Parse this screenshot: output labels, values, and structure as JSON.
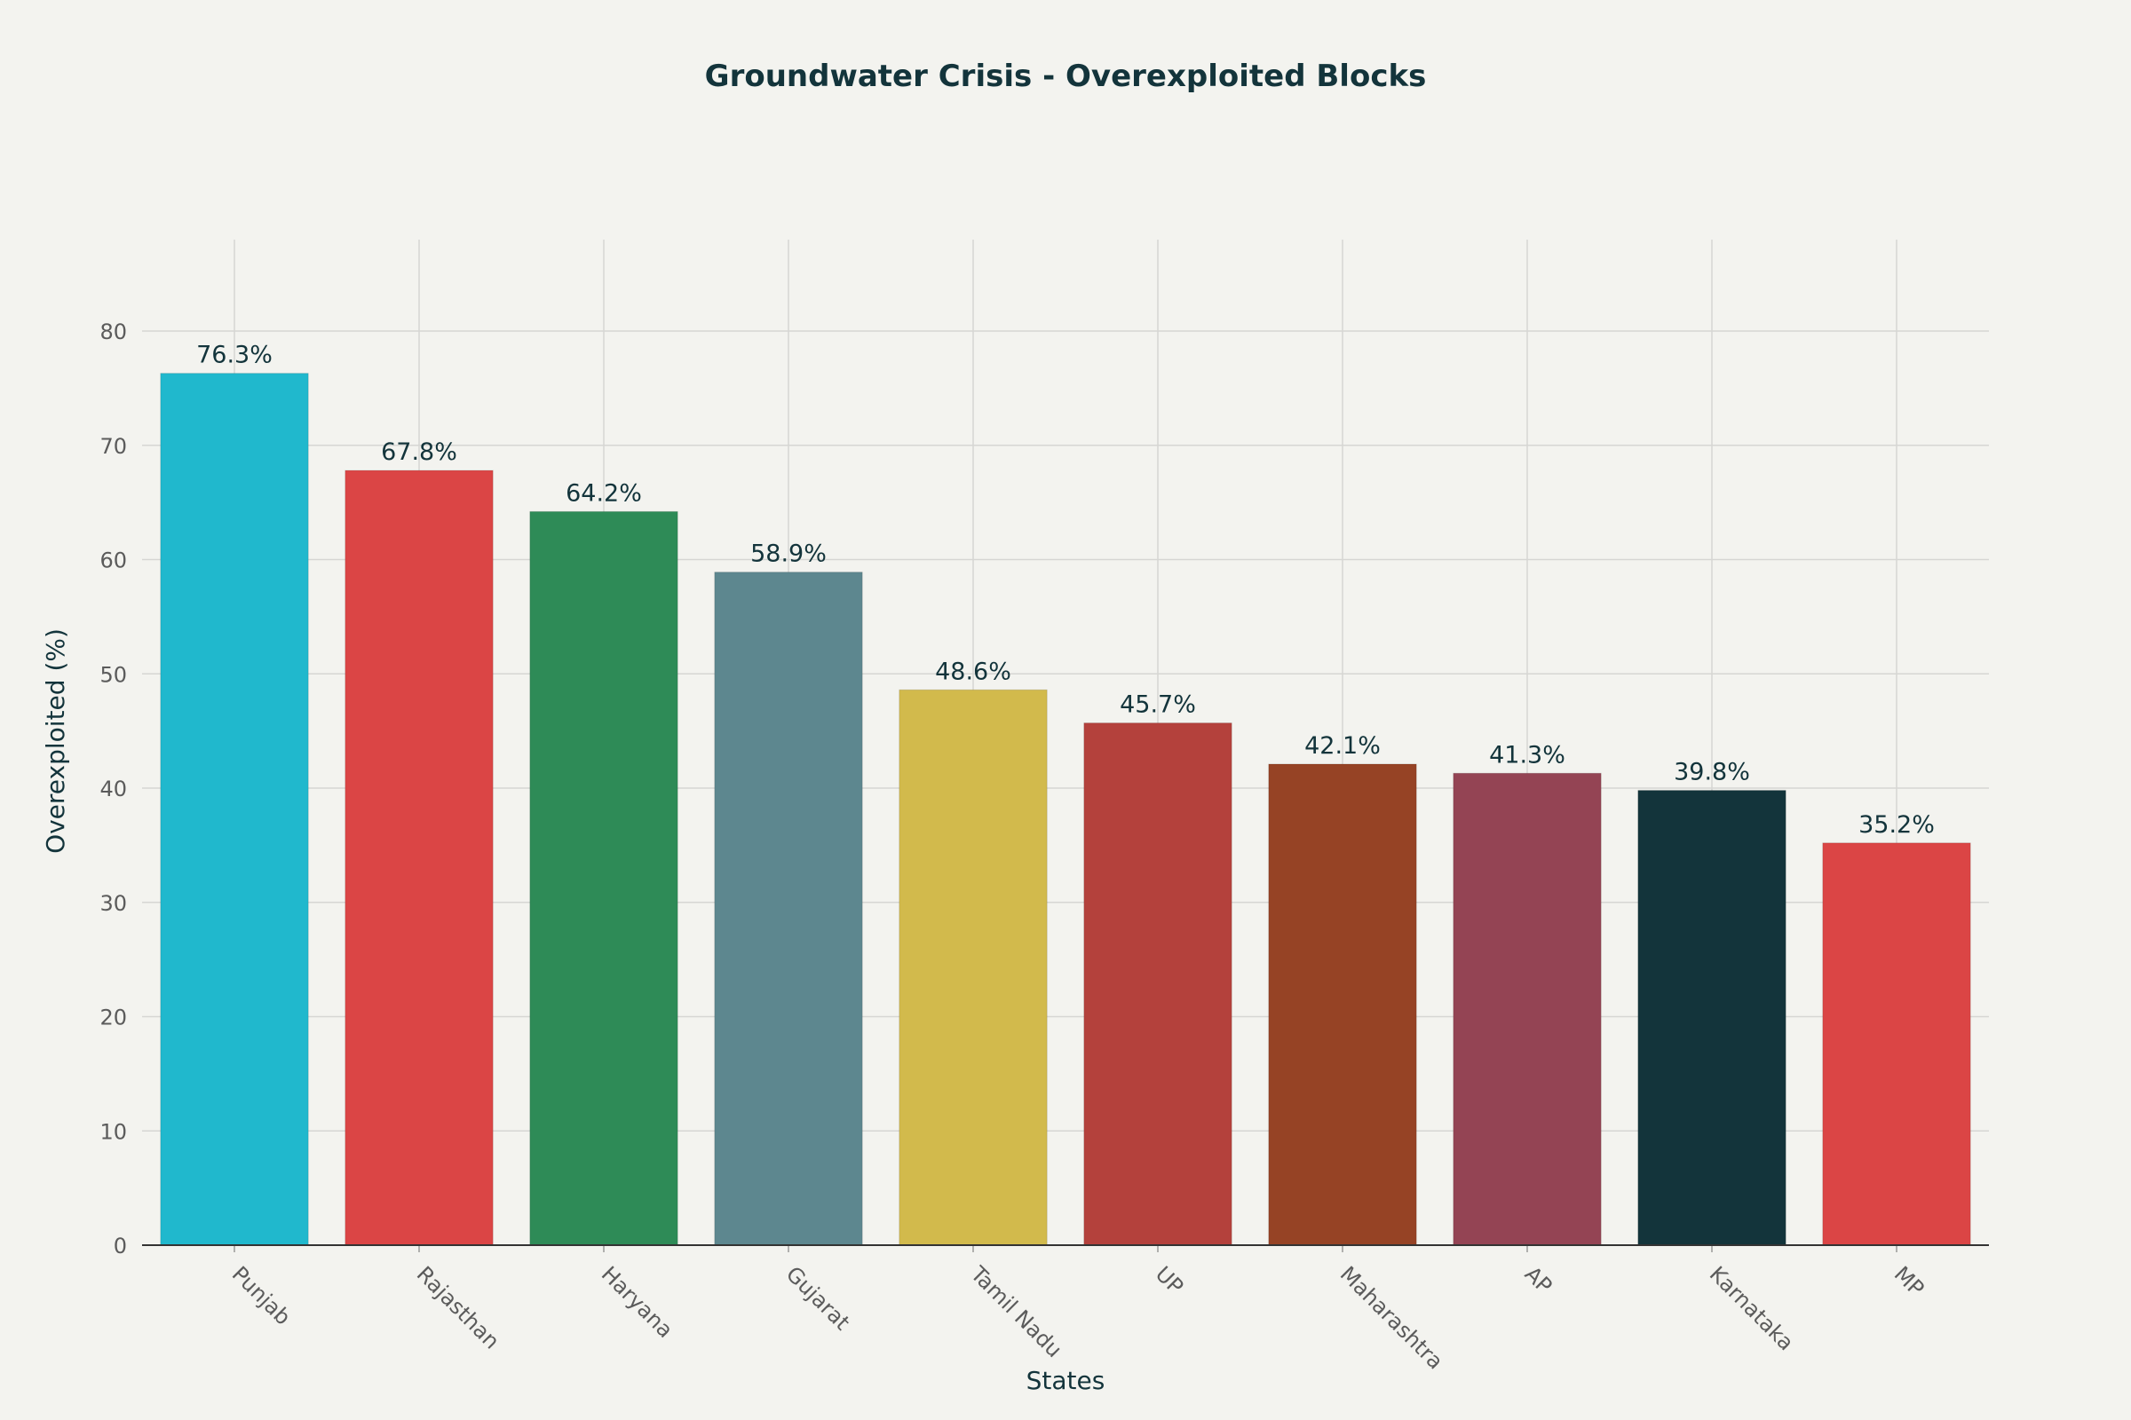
{
  "chart_data": {
    "type": "bar",
    "title": "Groundwater Crisis - Overexploited Blocks",
    "xlabel": "States",
    "ylabel": "Overexploited (%)",
    "categories": [
      "Punjab",
      "Rajasthan",
      "Haryana",
      "Gujarat",
      "Tamil Nadu",
      "UP",
      "Maharashtra",
      "AP",
      "Karnataka",
      "MP"
    ],
    "values": [
      76.3,
      67.8,
      64.2,
      58.9,
      48.6,
      45.7,
      42.1,
      41.3,
      39.8,
      35.2
    ],
    "data_labels": [
      "76.3%",
      "67.8%",
      "64.2%",
      "58.9%",
      "48.6%",
      "45.7%",
      "42.1%",
      "41.3%",
      "39.8%",
      "35.2%"
    ],
    "colors": [
      "#20b8cd",
      "#db4545",
      "#2e8b57",
      "#5d878f",
      "#d2ba4c",
      "#b4413c",
      "#964325",
      "#944454",
      "#13343b",
      "#db4545"
    ],
    "ylim": [
      0,
      88
    ],
    "yticks": [
      0,
      10,
      20,
      30,
      40,
      50,
      60,
      70,
      80
    ],
    "grid": true,
    "legend": "none"
  }
}
